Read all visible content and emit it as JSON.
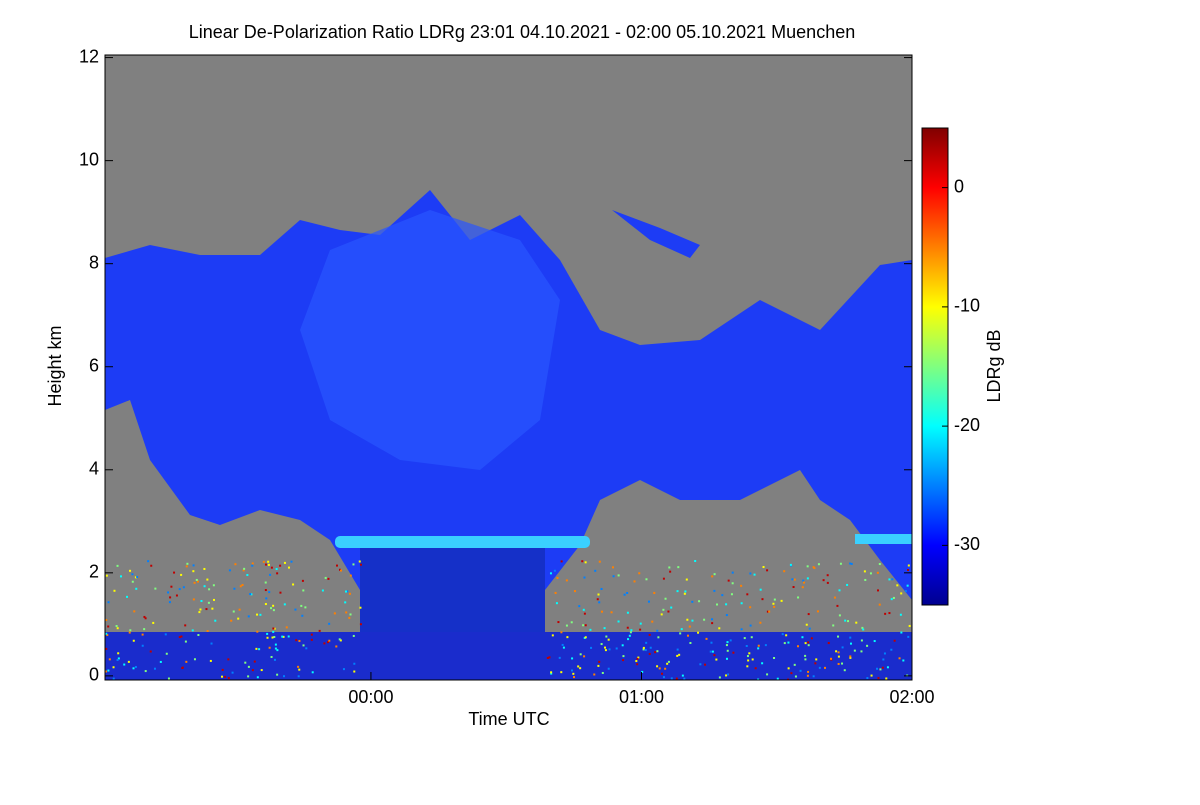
{
  "chart_data": {
    "type": "heatmap",
    "title": "Linear De-Polarization Ratio LDRg   23:01 04.10.2021 - 02:00 05.10.2021 Muenchen",
    "xlabel": "Time UTC",
    "ylabel": "Height km",
    "xlim": [
      -0.983,
      2.0
    ],
    "xticks": [
      {
        "value": 0,
        "label": "00:00"
      },
      {
        "value": 1,
        "label": "01:00"
      },
      {
        "value": 2,
        "label": "02:00"
      }
    ],
    "ylim": [
      -0.08,
      12.05
    ],
    "yticks": [
      0,
      2,
      4,
      6,
      8,
      10,
      12
    ],
    "colorbar": {
      "label": "LDRg dB",
      "colormap": "jet",
      "zlim": [
        -35,
        5
      ],
      "ticks": [
        0,
        -10,
        -20,
        -30
      ]
    }
  }
}
